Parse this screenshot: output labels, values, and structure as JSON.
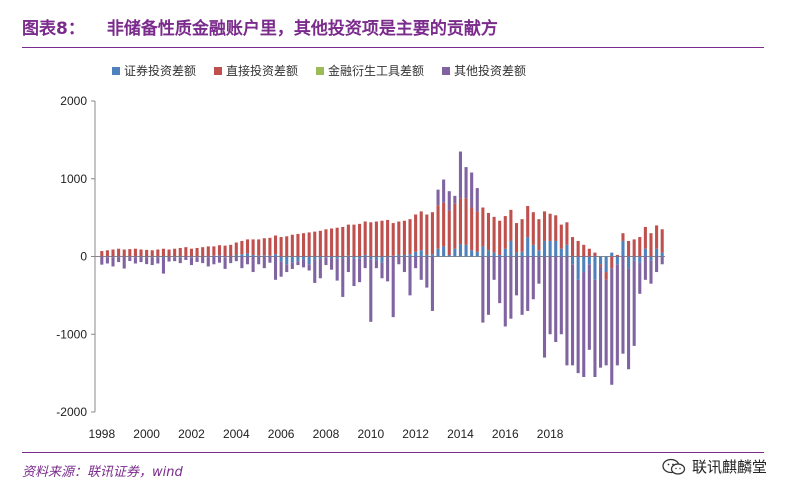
{
  "title": {
    "label": "图表8：",
    "text": "非储备性质金融账户里，其他投资项是主要的贡献方"
  },
  "source": "资料来源：联讯证券，wind",
  "watermark": {
    "text": "联讯麒麟堂",
    "icon": "wechat-icon"
  },
  "colors": {
    "title": "#7a2b8b",
    "sec": "#4f81bd",
    "fdi": "#c0504d",
    "deriv": "#9bbb59",
    "other": "#8064a2"
  },
  "chart_data": {
    "type": "bar",
    "stacked": true,
    "ylim": [
      -2000,
      2000
    ],
    "yticks": [
      2000,
      1000,
      0,
      -1000,
      -2000
    ],
    "ytick_labels": [
      "2000",
      "1000",
      "0",
      "-1000",
      "-2000"
    ],
    "xtick_labels": [
      "1998",
      "2000",
      "2002",
      "2004",
      "2006",
      "2008",
      "2010",
      "2012",
      "2014",
      "2016",
      "2018"
    ],
    "legend": [
      "证券投资差额",
      "直接投资差额",
      "金融衍生工具差额",
      "其他投资差额"
    ],
    "quarters_start": "1998Q1",
    "series": [
      {
        "name": "证券投资差额",
        "color": "#4f81bd",
        "values": [
          -5,
          -10,
          -8,
          -12,
          -5,
          -8,
          -10,
          -12,
          -8,
          -10,
          -10,
          -20,
          -5,
          -10,
          -15,
          -5,
          -10,
          -10,
          -5,
          -8,
          10,
          15,
          -10,
          -5,
          20,
          30,
          40,
          20,
          10,
          15,
          10,
          30,
          -60,
          -100,
          -80,
          -60,
          -40,
          -100,
          -40,
          -30,
          -10,
          -20,
          -30,
          -20,
          10,
          -30,
          -30,
          20,
          -40,
          -50,
          -80,
          -20,
          10,
          20,
          20,
          30,
          60,
          80,
          20,
          30,
          100,
          130,
          20,
          100,
          160,
          150,
          80,
          60,
          130,
          80,
          50,
          20,
          100,
          200,
          50,
          60,
          250,
          150,
          80,
          200,
          200,
          200,
          100,
          150,
          -100,
          -300,
          -200,
          -100,
          -300,
          -100,
          -200,
          50,
          -100,
          200,
          -150,
          -50,
          -80,
          100,
          -50,
          100,
          50
        ]
      },
      {
        "name": "直接投资差额",
        "color": "#c0504d",
        "values": [
          70,
          80,
          90,
          100,
          90,
          95,
          100,
          90,
          85,
          80,
          90,
          100,
          90,
          100,
          110,
          120,
          100,
          110,
          120,
          130,
          120,
          130,
          140,
          150,
          160,
          170,
          180,
          200,
          210,
          220,
          230,
          240,
          250,
          260,
          280,
          290,
          300,
          310,
          320,
          330,
          350,
          360,
          370,
          380,
          400,
          410,
          420,
          430,
          440,
          450,
          460,
          470,
          420,
          430,
          440,
          450,
          480,
          500,
          520,
          540,
          560,
          560,
          570,
          580,
          590,
          600,
          550,
          520,
          500,
          480,
          460,
          440,
          420,
          400,
          380,
          420,
          400,
          420,
          400,
          380,
          350,
          330,
          310,
          290,
          250,
          200,
          150,
          100,
          50,
          -30,
          -100,
          -150,
          20,
          100,
          200,
          220,
          250,
          280,
          300,
          300,
          300,
          320,
          300
        ]
      },
      {
        "name": "金融衍生工具差额",
        "color": "#9bbb59",
        "values": [
          0,
          0,
          0,
          0,
          0,
          0,
          0,
          0,
          0,
          0,
          0,
          0,
          0,
          0,
          0,
          0,
          0,
          0,
          0,
          0,
          0,
          0,
          0,
          0,
          0,
          0,
          0,
          0,
          0,
          0,
          0,
          0,
          0,
          0,
          0,
          0,
          0,
          0,
          0,
          0,
          0,
          0,
          0,
          0,
          0,
          0,
          0,
          0,
          0,
          0,
          0,
          0,
          0,
          0,
          0,
          0,
          0,
          0,
          0,
          0,
          0,
          0,
          0,
          0,
          0,
          0,
          0,
          0,
          0,
          0,
          0,
          0,
          0,
          0,
          0,
          0,
          0,
          0,
          0,
          0,
          0,
          0,
          0,
          0,
          0,
          0,
          0,
          0,
          0,
          0,
          0,
          0,
          0,
          0,
          0,
          0,
          0,
          0,
          0,
          0,
          0,
          0,
          0
        ]
      },
      {
        "name": "其他投资差额",
        "color": "#8064a2",
        "values": [
          -100,
          -80,
          -120,
          -60,
          -150,
          -50,
          -80,
          -60,
          -90,
          -100,
          -80,
          -200,
          -60,
          -50,
          -70,
          -40,
          -100,
          -60,
          -80,
          -120,
          -100,
          -80,
          -150,
          -80,
          -60,
          -150,
          -100,
          -200,
          -100,
          -150,
          -80,
          -300,
          -200,
          -100,
          -80,
          -50,
          -100,
          -80,
          -300,
          -250,
          -100,
          -150,
          -280,
          -500,
          -200,
          -350,
          -300,
          -150,
          -800,
          -100,
          -200,
          -300,
          -780,
          -100,
          -200,
          -500,
          -150,
          -300,
          -400,
          -700,
          200,
          300,
          250,
          100,
          600,
          400,
          450,
          300,
          -850,
          -750,
          -300,
          -600,
          -900,
          -800,
          -500,
          -750,
          -700,
          -550,
          -350,
          -1300,
          -1000,
          -1100,
          -1000,
          -1400,
          -1300,
          -1200,
          -1350,
          -1100,
          -1250,
          -1300,
          -1100,
          -1500,
          -1300,
          -1250,
          -1300,
          -1100,
          -400,
          -300,
          -300,
          -200,
          -100,
          300,
          0
        ]
      }
    ],
    "totals_hint": "stacked positive/negative"
  }
}
